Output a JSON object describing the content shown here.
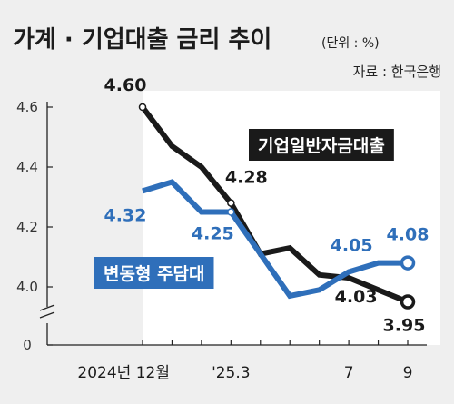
{
  "header": {
    "title": "가계 · 기업대출 금리 추이",
    "unit": "(단위 : %)",
    "source": "자료 : 한국은행"
  },
  "colors": {
    "background": "#efefef",
    "plot_area": "#ffffff",
    "business_series": "#1a1a1a",
    "household_series": "#2f6fba",
    "grid": "#cfcfcf"
  },
  "chart_data": {
    "type": "line",
    "title": "가계 · 기업대출 금리 추이",
    "unit": "%",
    "x": [
      "2024-12",
      "2025-01",
      "2025-02",
      "2025-03",
      "2025-04",
      "2025-05",
      "2025-06",
      "2025-07",
      "2025-08",
      "2025-09"
    ],
    "x_tick_labels": [
      {
        "x": "2024-12",
        "label": "2024년 12월"
      },
      {
        "x": "2025-03",
        "label": "'25.3"
      },
      {
        "x": "2025-07",
        "label": "7"
      },
      {
        "x": "2025-09",
        "label": "9"
      }
    ],
    "y_ticks": [
      "0",
      "4.0",
      "4.2",
      "4.4",
      "4.6"
    ],
    "y_axis_break": true,
    "ylim": [
      3.9,
      4.6
    ],
    "grid": false,
    "series": [
      {
        "name": "기업일반자금대출",
        "values": [
          4.6,
          4.47,
          4.4,
          4.28,
          4.11,
          4.13,
          4.04,
          4.03,
          3.99,
          3.95
        ],
        "labels": [
          {
            "index": 0,
            "text": "4.60"
          },
          {
            "index": 3,
            "text": "4.28"
          },
          {
            "index": 7,
            "text": "4.03"
          },
          {
            "index": 9,
            "text": "3.95"
          }
        ]
      },
      {
        "name": "변동형 주담대",
        "values": [
          4.32,
          4.35,
          4.25,
          4.25,
          4.11,
          3.97,
          3.99,
          4.05,
          4.08,
          4.08
        ],
        "labels": [
          {
            "index": 0,
            "text": "4.32"
          },
          {
            "index": 3,
            "text": "4.25"
          },
          {
            "index": 7,
            "text": "4.05"
          },
          {
            "index": 9,
            "text": "4.08"
          }
        ]
      }
    ]
  }
}
